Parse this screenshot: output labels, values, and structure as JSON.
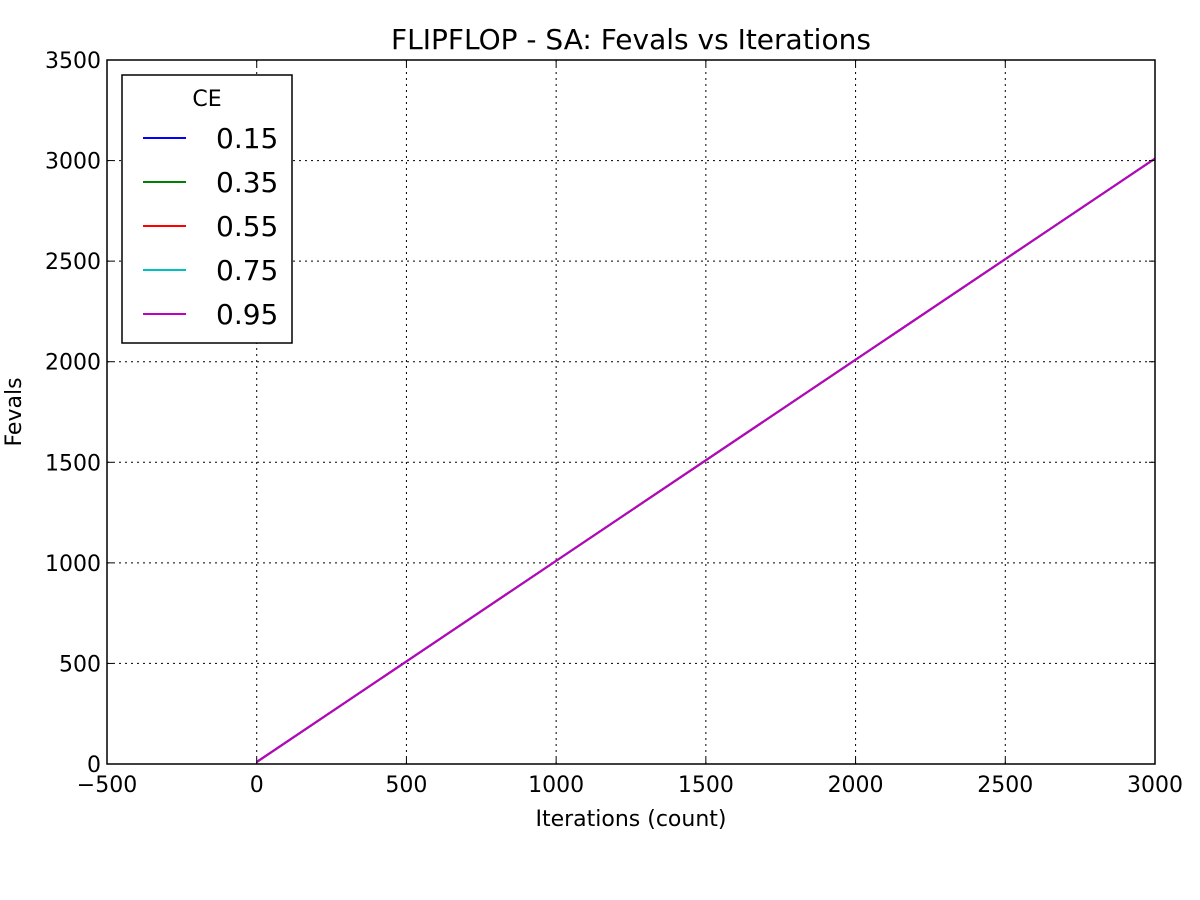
{
  "chart_data": {
    "type": "line",
    "title": "FLIPFLOP - SA: Fevals vs Iterations",
    "xlabel": "Iterations (count)",
    "ylabel": "Fevals",
    "xlim": [
      -500,
      3000
    ],
    "ylim": [
      0,
      3500
    ],
    "xticks": [
      -500,
      0,
      500,
      1000,
      1500,
      2000,
      2500,
      3000
    ],
    "xtick_labels": [
      "−500",
      "0",
      "500",
      "1000",
      "1500",
      "2000",
      "2500",
      "3000"
    ],
    "yticks": [
      0,
      500,
      1000,
      1500,
      2000,
      2500,
      3000,
      3500
    ],
    "ytick_labels": [
      "0",
      "500",
      "1000",
      "1500",
      "2000",
      "2500",
      "3000",
      "3500"
    ],
    "grid": true,
    "legend": {
      "title": "CE",
      "placement": "upper-left"
    },
    "series": [
      {
        "name": "0.15",
        "color": "#0000ff",
        "x": [
          0,
          3000
        ],
        "y": [
          10,
          3010
        ]
      },
      {
        "name": "0.35",
        "color": "#008000",
        "x": [
          0,
          3000
        ],
        "y": [
          10,
          3010
        ]
      },
      {
        "name": "0.55",
        "color": "#ff0000",
        "x": [
          0,
          3000
        ],
        "y": [
          10,
          3010
        ]
      },
      {
        "name": "0.75",
        "color": "#00bfbf",
        "x": [
          0,
          3000
        ],
        "y": [
          10,
          3010
        ]
      },
      {
        "name": "0.95",
        "color": "#bf00bf",
        "x": [
          0,
          3000
        ],
        "y": [
          10,
          3010
        ]
      }
    ]
  }
}
